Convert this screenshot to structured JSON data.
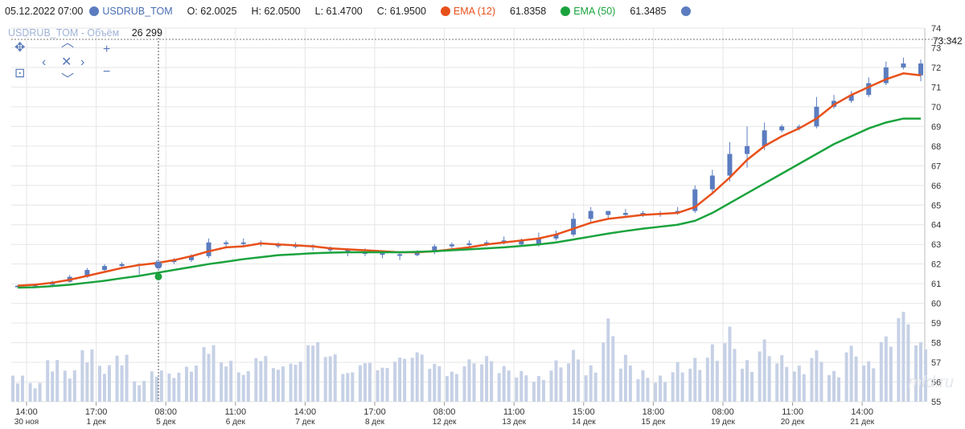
{
  "header": {
    "datetime": "05.12.2022 07:00",
    "symbol": "USDRUB_TOM",
    "open": "O: 62.0025",
    "high": "H: 62.0500",
    "low": "L: 61.4700",
    "close": "C: 61.9500",
    "ema12_label": "EMA (12)",
    "ema12_value": "61.8358",
    "ema50_label": "EMA (50)",
    "ema50_value": "61.3485"
  },
  "volume_legend": {
    "name": "USDRUB_TOM - Объём",
    "value": "26 299"
  },
  "colors": {
    "candle": "#5b7cbf",
    "ema12": "#e8501a",
    "ema50": "#1aa33d",
    "volume": "#c6d1e6",
    "grid": "#e6e6e6"
  },
  "nav_icons": [
    "pan-icon",
    "zoom-area-icon",
    "chevron-up-icon",
    "chevron-left-icon",
    "reset-icon",
    "chevron-right-icon",
    "chevron-down-icon",
    "plus-icon",
    "minus-icon"
  ],
  "chart_data": {
    "type": "line",
    "chart_kind": "candlestick with EMA overlays and volume bars",
    "y_axis": {
      "min": 55,
      "max": 74,
      "ticks": [
        55,
        56,
        57,
        58,
        59,
        60,
        61,
        62,
        63,
        64,
        65,
        66,
        67,
        68,
        69,
        70,
        71,
        72,
        73,
        74
      ],
      "side": "right",
      "price_marker": "73.342"
    },
    "x_ticks": [
      {
        "time": "14:00",
        "date": "30 ноя"
      },
      {
        "time": "17:00",
        "date": "1 дек"
      },
      {
        "time": "08:00",
        "date": "5 дек"
      },
      {
        "time": "11:00",
        "date": "6 дек"
      },
      {
        "time": "14:00",
        "date": "7 дек"
      },
      {
        "time": "17:00",
        "date": "8 дек"
      },
      {
        "time": "08:00",
        "date": "12 дек"
      },
      {
        "time": "11:00",
        "date": "13 дек"
      },
      {
        "time": "15:00",
        "date": "14 дек"
      },
      {
        "time": "18:00",
        "date": "15 дек"
      },
      {
        "time": "08:00",
        "date": "19 дек"
      },
      {
        "time": "11:00",
        "date": "20 дек"
      },
      {
        "time": "14:00",
        "date": "21 дек"
      }
    ],
    "grid": true,
    "series": [
      {
        "name": "EMA (12)",
        "values": [
          60.9,
          60.95,
          61.05,
          61.2,
          61.4,
          61.6,
          61.8,
          61.95,
          62.05,
          62.2,
          62.4,
          62.65,
          62.85,
          62.9,
          63.05,
          63.0,
          62.95,
          62.9,
          62.8,
          62.75,
          62.7,
          62.65,
          62.6,
          62.6,
          62.65,
          62.75,
          62.85,
          63.0,
          63.1,
          63.2,
          63.3,
          63.5,
          63.8,
          64.1,
          64.3,
          64.4,
          64.5,
          64.55,
          64.6,
          64.9,
          65.6,
          66.4,
          67.3,
          68.0,
          68.5,
          68.9,
          69.4,
          70.1,
          70.6,
          71.0,
          71.4,
          71.7,
          71.6
        ]
      },
      {
        "name": "EMA (50)",
        "values": [
          60.8,
          60.82,
          60.88,
          60.95,
          61.05,
          61.15,
          61.28,
          61.4,
          61.55,
          61.7,
          61.85,
          62.0,
          62.12,
          62.25,
          62.35,
          62.45,
          62.5,
          62.55,
          62.58,
          62.6,
          62.6,
          62.6,
          62.6,
          62.62,
          62.65,
          62.7,
          62.75,
          62.8,
          62.85,
          62.92,
          63.0,
          63.1,
          63.25,
          63.4,
          63.55,
          63.68,
          63.8,
          63.9,
          64.0,
          64.2,
          64.6,
          65.1,
          65.6,
          66.1,
          66.6,
          67.1,
          67.6,
          68.1,
          68.5,
          68.9,
          69.2,
          69.4,
          69.4
        ]
      }
    ],
    "candles": [
      [
        60.88,
        60.9,
        60.85,
        60.92
      ],
      [
        60.9,
        60.95,
        60.85,
        61.0
      ],
      [
        60.95,
        61.1,
        60.9,
        61.15
      ],
      [
        61.1,
        61.35,
        61.05,
        61.45
      ],
      [
        61.35,
        61.7,
        61.3,
        61.8
      ],
      [
        61.7,
        61.9,
        61.6,
        62.0
      ],
      [
        61.9,
        62.0,
        61.8,
        62.1
      ],
      [
        62.0,
        61.95,
        61.47,
        62.05
      ],
      [
        61.95,
        62.1,
        61.9,
        62.2
      ],
      [
        62.1,
        62.2,
        62.0,
        62.3
      ],
      [
        62.2,
        62.4,
        62.1,
        62.5
      ],
      [
        62.4,
        63.1,
        62.3,
        63.3
      ],
      [
        63.1,
        63.05,
        62.9,
        63.2
      ],
      [
        63.05,
        63.1,
        62.9,
        63.3
      ],
      [
        63.1,
        63.0,
        62.9,
        63.2
      ],
      [
        63.0,
        62.9,
        62.8,
        63.1
      ],
      [
        62.9,
        62.95,
        62.8,
        63.1
      ],
      [
        62.95,
        62.85,
        62.7,
        63.0
      ],
      [
        62.85,
        62.7,
        62.6,
        62.9
      ],
      [
        62.7,
        62.6,
        62.4,
        62.8
      ],
      [
        62.6,
        62.55,
        62.4,
        62.8
      ],
      [
        62.55,
        62.5,
        62.3,
        62.7
      ],
      [
        62.5,
        62.45,
        62.2,
        62.6
      ],
      [
        62.45,
        62.6,
        62.4,
        62.7
      ],
      [
        62.6,
        62.9,
        62.5,
        63.0
      ],
      [
        62.9,
        63.0,
        62.8,
        63.1
      ],
      [
        63.0,
        63.05,
        62.9,
        63.2
      ],
      [
        63.05,
        63.1,
        62.9,
        63.2
      ],
      [
        63.1,
        63.2,
        63.0,
        63.4
      ],
      [
        63.2,
        63.0,
        62.9,
        63.3
      ],
      [
        63.0,
        63.3,
        62.9,
        63.6
      ],
      [
        63.3,
        63.5,
        63.2,
        63.7
      ],
      [
        63.5,
        64.3,
        63.4,
        64.6
      ],
      [
        64.3,
        64.7,
        64.1,
        64.9
      ],
      [
        64.7,
        64.5,
        64.3,
        64.7
      ],
      [
        64.5,
        64.6,
        64.4,
        64.8
      ],
      [
        64.6,
        64.5,
        64.4,
        64.7
      ],
      [
        64.5,
        64.6,
        64.4,
        64.7
      ],
      [
        64.6,
        64.7,
        64.5,
        64.9
      ],
      [
        64.7,
        65.8,
        64.6,
        66.0
      ],
      [
        65.8,
        66.5,
        65.6,
        66.8
      ],
      [
        66.5,
        67.6,
        66.2,
        68.2
      ],
      [
        67.6,
        68.0,
        66.9,
        69.0
      ],
      [
        68.0,
        68.8,
        67.8,
        69.2
      ],
      [
        68.8,
        69.0,
        68.7,
        69.1
      ],
      [
        69.0,
        69.0,
        68.8,
        69.1
      ],
      [
        69.0,
        70.0,
        68.9,
        70.5
      ],
      [
        70.0,
        70.3,
        69.9,
        70.6
      ],
      [
        70.3,
        70.6,
        70.2,
        70.8
      ],
      [
        70.6,
        71.2,
        70.5,
        71.5
      ],
      [
        71.2,
        72.0,
        71.1,
        72.3
      ],
      [
        72.0,
        72.2,
        71.9,
        72.5
      ],
      [
        72.2,
        71.6,
        71.3,
        72.4
      ]
    ],
    "volume": [
      0.25,
      0.18,
      0.4,
      0.3,
      0.5,
      0.35,
      0.45,
      0.2,
      0.3,
      0.28,
      0.35,
      0.55,
      0.4,
      0.3,
      0.45,
      0.35,
      0.4,
      0.6,
      0.48,
      0.3,
      0.4,
      0.35,
      0.45,
      0.5,
      0.38,
      0.3,
      0.42,
      0.45,
      0.35,
      0.3,
      0.25,
      0.4,
      0.5,
      0.35,
      0.8,
      0.45,
      0.3,
      0.25,
      0.38,
      0.42,
      0.55,
      0.72,
      0.4,
      0.6,
      0.45,
      0.35,
      0.5,
      0.3,
      0.55,
      0.4,
      0.65,
      0.9,
      0.6
    ]
  }
}
